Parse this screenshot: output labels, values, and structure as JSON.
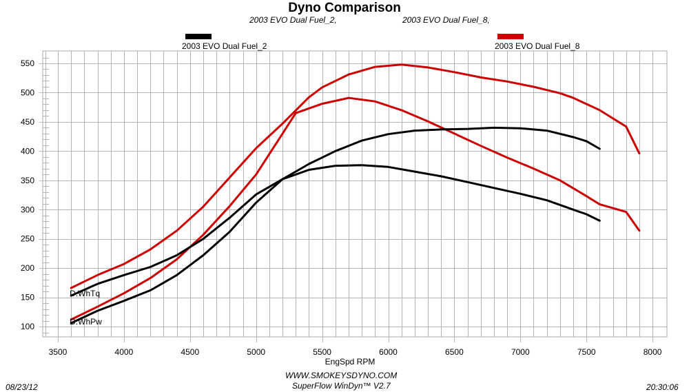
{
  "header": {
    "title": "Dyno Comparison",
    "subtitle_1": "2003 EVO Dual Fuel_2,",
    "subtitle_2": "2003 EVO Dual Fuel_8,"
  },
  "legend": [
    {
      "label": "2003 EVO Dual Fuel_2",
      "color": "#000000"
    },
    {
      "label": "2003 EVO Dual Fuel_8",
      "color": "#cc0000"
    }
  ],
  "footer": {
    "date": "08/23/12",
    "time": "20:30:06",
    "website": "WWW.SMOKEYSDYNO.COM",
    "software": "SuperFlow WinDyn™ V2.7"
  },
  "chart_data": {
    "type": "line",
    "title": "Dyno Comparison",
    "xlabel": "EngSpd  RPM",
    "ylabel": "",
    "xlim": [
      3400,
      8100
    ],
    "ylim": [
      75,
      565
    ],
    "xticks": [
      3500,
      4000,
      4500,
      5000,
      5500,
      6000,
      6500,
      7000,
      7500,
      8000
    ],
    "yticks": [
      100,
      150,
      200,
      250,
      300,
      350,
      400,
      450,
      500,
      550
    ],
    "x_minor_step": 100,
    "grid": true,
    "legend_position": "top",
    "curve_labels": [
      {
        "text": "D.WhTq",
        "x": 3600,
        "y": 160
      },
      {
        "text": "D.WhPw",
        "x": 3600,
        "y": 112
      }
    ],
    "series": [
      {
        "name": "2003 EVO Dual Fuel_8 D.WhTq",
        "color": "#cc0000",
        "x": [
          3600,
          3800,
          4000,
          4200,
          4400,
          4600,
          4800,
          5000,
          5200,
          5400,
          5500,
          5700,
          5900,
          6100,
          6300,
          6500,
          6700,
          6900,
          7100,
          7300,
          7400,
          7600,
          7800,
          7900
        ],
        "y": [
          166,
          188,
          207,
          232,
          264,
          305,
          355,
          405,
          447,
          492,
          509,
          531,
          544,
          548,
          543,
          535,
          526,
          519,
          510,
          499,
          491,
          470,
          442,
          396
        ]
      },
      {
        "name": "2003 EVO Dual Fuel_8 D.WhPw",
        "color": "#cc0000",
        "x": [
          3600,
          3800,
          4000,
          4200,
          4400,
          4600,
          4800,
          5000,
          5200,
          5300,
          5500,
          5700,
          5900,
          6100,
          6300,
          6500,
          6700,
          6900,
          7100,
          7300,
          7500,
          7600,
          7800,
          7900
        ],
        "y": [
          112,
          134,
          157,
          183,
          215,
          257,
          306,
          360,
          430,
          465,
          481,
          491,
          485,
          470,
          451,
          430,
          409,
          389,
          370,
          350,
          323,
          309,
          296,
          264
        ]
      },
      {
        "name": "2003 EVO Dual Fuel_2 D.WhTq",
        "color": "#000000",
        "x": [
          3600,
          3800,
          4000,
          4200,
          4400,
          4600,
          4800,
          5000,
          5200,
          5400,
          5600,
          5800,
          6000,
          6200,
          6400,
          6600,
          6800,
          7000,
          7200,
          7400,
          7500,
          7600
        ],
        "y": [
          153,
          173,
          188,
          202,
          222,
          250,
          286,
          326,
          352,
          368,
          375,
          376,
          373,
          365,
          357,
          347,
          337,
          327,
          316,
          300,
          292,
          281
        ]
      },
      {
        "name": "2003 EVO Dual Fuel_2 D.WhPw",
        "color": "#000000",
        "x": [
          3600,
          3800,
          4000,
          4200,
          4400,
          4600,
          4800,
          5000,
          5200,
          5400,
          5600,
          5800,
          6000,
          6200,
          6400,
          6600,
          6800,
          7000,
          7200,
          7400,
          7500,
          7600
        ],
        "y": [
          106,
          127,
          144,
          162,
          188,
          222,
          262,
          312,
          352,
          378,
          400,
          418,
          429,
          435,
          437,
          438,
          440,
          439,
          435,
          424,
          417,
          404
        ]
      }
    ]
  }
}
